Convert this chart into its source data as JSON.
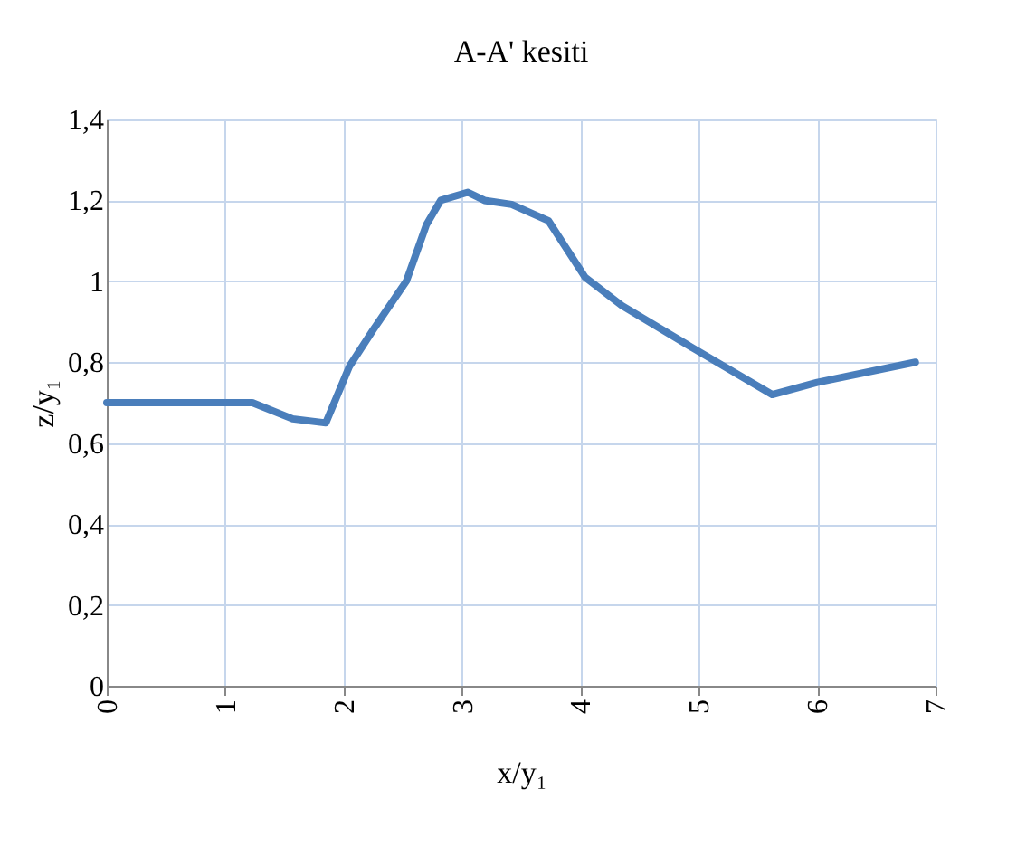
{
  "chart_data": {
    "type": "line",
    "title": "A-A' kesiti",
    "xlabel": "x/y₁",
    "ylabel": "z/y₁",
    "x": [
      0,
      0.63,
      1.23,
      1.57,
      1.85,
      2.05,
      2.25,
      2.53,
      2.7,
      2.82,
      3.05,
      3.19,
      3.42,
      3.73,
      4.04,
      4.35,
      4.98,
      5.62,
      6.0,
      6.83
    ],
    "series": [
      {
        "color": "#4a7ebb",
        "values": [
          0.7,
          0.7,
          0.7,
          0.66,
          0.65,
          0.79,
          0.88,
          1.0,
          1.14,
          1.2,
          1.22,
          1.2,
          1.19,
          1.15,
          1.01,
          0.94,
          0.83,
          0.72,
          0.75,
          0.8
        ]
      }
    ],
    "xlim": [
      0,
      7
    ],
    "xticks": [
      0,
      1,
      2,
      3,
      4,
      5,
      6,
      7
    ],
    "ylim": [
      0,
      1.4
    ],
    "yticks": [
      0,
      {
        "value": 0.2,
        "label": "0,2"
      },
      {
        "value": 0.4,
        "label": "0,4"
      },
      {
        "value": 0.6,
        "label": "0,6"
      },
      {
        "value": 0.8,
        "label": "0,8"
      },
      1,
      {
        "value": 1.2,
        "label": "1,2"
      },
      {
        "value": 1.4,
        "label": "1,4"
      }
    ],
    "grid": true,
    "marker": "none",
    "line_style": "solid"
  }
}
